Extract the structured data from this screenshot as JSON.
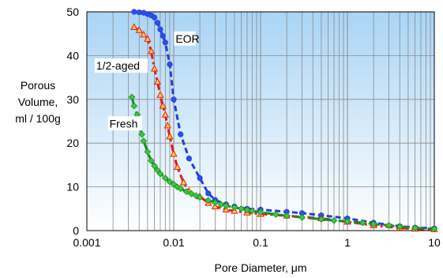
{
  "chart_data": {
    "type": "line",
    "xlabel": "Pore Diameter, μm",
    "ylabel_lines": [
      "Porous",
      "Volume,",
      "ml / 100g"
    ],
    "x_scale": "log",
    "xlim": [
      0.001,
      10
    ],
    "ylim": [
      0,
      50
    ],
    "x_ticks": [
      0.001,
      0.01,
      0.1,
      1,
      10
    ],
    "x_tick_labels": [
      "0.001",
      "0.01",
      "0.1",
      "1",
      "10"
    ],
    "y_ticks": [
      0,
      10,
      20,
      30,
      40,
      50
    ],
    "y_tick_labels": [
      "0",
      "10",
      "20",
      "30",
      "40",
      "50"
    ],
    "grid": true,
    "background": {
      "top": "#a9d4f5",
      "bottom": "#ffffff"
    },
    "series": [
      {
        "name": "EOR",
        "color": "#1f3fe0",
        "marker": "circle",
        "marker_color": "#2a4ff0",
        "dash": "dashed",
        "x": [
          0.0035,
          0.004,
          0.0045,
          0.005,
          0.0055,
          0.006,
          0.0065,
          0.007,
          0.0075,
          0.008,
          0.009,
          0.01,
          0.012,
          0.015,
          0.02,
          0.025,
          0.03,
          0.04,
          0.05,
          0.07,
          0.1,
          0.2,
          0.3,
          0.5,
          1.0,
          2.0,
          4.0,
          6.0,
          10.0
        ],
        "y": [
          50,
          49.9,
          49.8,
          49.5,
          49.2,
          48.7,
          47.5,
          46.0,
          44.5,
          43.0,
          38.0,
          30.0,
          22.0,
          16.5,
          12.0,
          8.5,
          7.0,
          6.0,
          5.5,
          5.0,
          4.8,
          4.3,
          4.0,
          3.5,
          2.8,
          1.8,
          1.0,
          0.7,
          0.5
        ]
      },
      {
        "name": "1/2-aged",
        "color": "#e8191a",
        "marker": "triangle",
        "marker_color": "#ffd23a",
        "dash": "dashdot",
        "x": [
          0.0035,
          0.004,
          0.0045,
          0.005,
          0.0055,
          0.006,
          0.0065,
          0.007,
          0.0075,
          0.008,
          0.0085,
          0.009,
          0.01,
          0.011,
          0.013,
          0.015,
          0.02,
          0.025,
          0.03,
          0.04,
          0.05,
          0.07,
          0.1,
          0.2,
          0.5,
          1.0,
          2.0,
          4.0,
          6.0,
          10.0
        ],
        "y": [
          46.5,
          45.8,
          44.8,
          43.8,
          41.0,
          37.0,
          34.0,
          31.0,
          28.5,
          26.5,
          24.0,
          21.5,
          17.5,
          14.5,
          11.0,
          9.0,
          7.8,
          6.3,
          5.5,
          4.8,
          4.5,
          4.1,
          3.8,
          3.4,
          2.8,
          2.0,
          1.2,
          0.6,
          0.4,
          0.3
        ]
      },
      {
        "name": "Fresh",
        "color": "#1e8a1e",
        "marker": "diamond",
        "marker_color": "#3cc83c",
        "dash": "longdash",
        "x": [
          0.0033,
          0.0035,
          0.0038,
          0.004,
          0.0043,
          0.0045,
          0.005,
          0.0055,
          0.006,
          0.0065,
          0.007,
          0.008,
          0.009,
          0.01,
          0.011,
          0.012,
          0.014,
          0.016,
          0.018,
          0.02,
          0.025,
          0.03,
          0.035,
          0.04,
          0.05,
          0.06,
          0.07,
          0.08,
          0.1,
          0.15,
          0.2,
          0.3,
          0.5,
          0.7,
          1.0,
          1.5,
          2.0,
          3.0,
          4.0,
          6.0,
          10.0
        ],
        "y": [
          30.5,
          28.5,
          26.5,
          24.5,
          22.0,
          20.5,
          18.0,
          16.0,
          14.8,
          13.8,
          13.0,
          12.0,
          11.2,
          10.6,
          10.0,
          9.6,
          8.9,
          8.4,
          8.0,
          7.6,
          6.9,
          6.4,
          6.0,
          5.7,
          5.3,
          5.0,
          4.7,
          4.5,
          4.2,
          3.7,
          3.4,
          3.0,
          2.6,
          2.3,
          2.1,
          1.8,
          1.5,
          1.2,
          0.9,
          0.6,
          0.4
        ]
      }
    ],
    "labels": [
      {
        "text": "EOR",
        "x": 0.0105,
        "y": 43.0
      },
      {
        "text": "1/2-aged",
        "x": 0.00128,
        "y": 36.8
      },
      {
        "text": "Fresh",
        "x": 0.00182,
        "y": 23.6
      }
    ]
  }
}
